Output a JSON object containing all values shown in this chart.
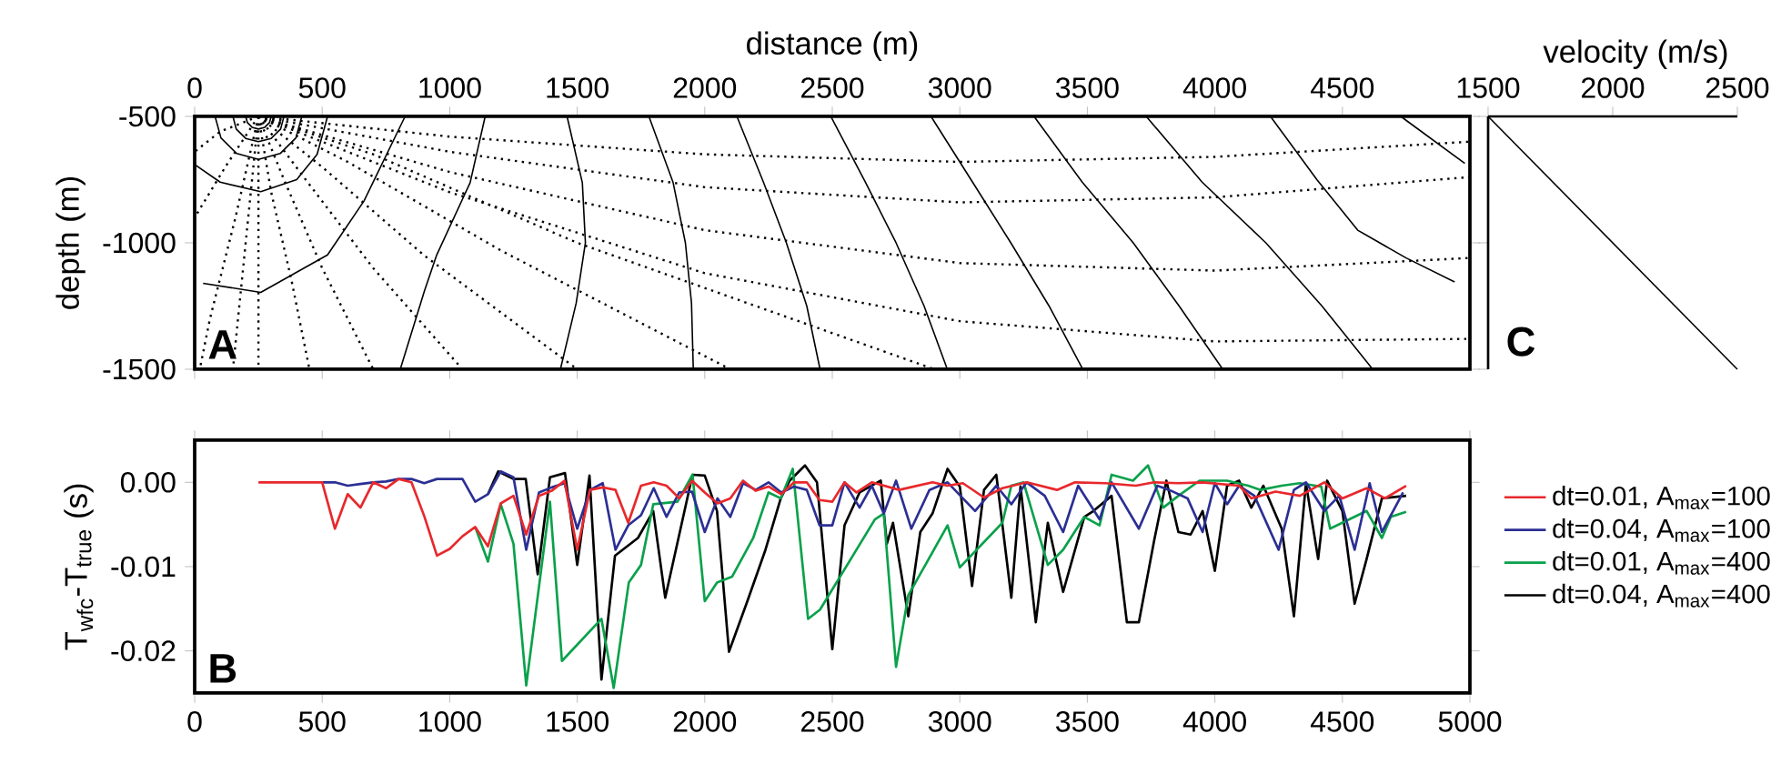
{
  "chart_data": [
    {
      "type": "line",
      "xlabel": "distance (m)",
      "xlim": [
        0,
        5000
      ],
      "xticks": [
        0,
        500,
        1000,
        1500,
        2000,
        2500,
        3000,
        3500,
        4000,
        4500
      ],
      "ylabel": "depth (m)",
      "ylim": [
        -1500,
        -500
      ],
      "yticks": [
        -1500,
        -1000,
        -500
      ],
      "annotations": [
        "A"
      ],
      "series": [
        {
          "x": [
            200,
            207,
            225,
            250,
            275,
            293,
            300
          ],
          "values": [
            -500,
            -525,
            -543,
            -550,
            -543,
            -525,
            -500
          ],
          "color": "#000000",
          "line_style": "solid"
        },
        {
          "x": [
            150,
            163,
            200,
            250,
            300,
            337,
            350
          ],
          "values": [
            -500,
            -550,
            -587,
            -600,
            -587,
            -550,
            -500
          ],
          "color": "#000000",
          "line_style": "solid"
        },
        {
          "x": [
            80,
            103,
            165,
            250,
            335,
            397,
            420
          ],
          "values": [
            -500,
            -585,
            -647,
            -670,
            -647,
            -585,
            -500
          ],
          "color": "#000000",
          "line_style": "solid"
        },
        {
          "x": [
            0,
            100,
            259,
            400,
            480,
            521
          ],
          "values": [
            -690,
            -760,
            -798,
            -750,
            -650,
            -500
          ],
          "color": "#000000",
          "line_style": "solid"
        },
        {
          "x": [
            33,
            259,
            521,
            664,
            825
          ],
          "values": [
            -1160,
            -1196,
            -1048,
            -834,
            -500
          ],
          "color": "#000000",
          "line_style": "solid"
        },
        {
          "x": [
            1139,
            1080,
            949,
            901,
            806
          ],
          "values": [
            -500,
            -762,
            -1048,
            -1190,
            -1500
          ],
          "color": "#000000",
          "line_style": "solid"
        },
        {
          "x": [
            1460,
            1520,
            1532,
            1496,
            1434
          ],
          "values": [
            -500,
            -762,
            -1000,
            -1238,
            -1500
          ],
          "color": "#000000",
          "line_style": "solid"
        },
        {
          "x": [
            1781,
            1876,
            1924,
            1948,
            1955
          ],
          "values": [
            -500,
            -762,
            -1000,
            -1238,
            -1500
          ],
          "color": "#000000",
          "line_style": "solid"
        },
        {
          "x": [
            2126,
            2230,
            2320,
            2400,
            2452
          ],
          "values": [
            -500,
            -760,
            -1000,
            -1250,
            -1500
          ],
          "color": "#000000",
          "line_style": "solid"
        },
        {
          "x": [
            2494,
            2630,
            2750,
            2860,
            2951
          ],
          "values": [
            -500,
            -760,
            -1000,
            -1250,
            -1500
          ],
          "color": "#000000",
          "line_style": "solid"
        },
        {
          "x": [
            2887,
            3050,
            3200,
            3350,
            3482
          ],
          "values": [
            -500,
            -760,
            -1000,
            -1250,
            -1500
          ],
          "color": "#000000",
          "line_style": "solid"
        },
        {
          "x": [
            3291,
            3480,
            3680,
            3860,
            4031
          ],
          "values": [
            -500,
            -760,
            -1000,
            -1250,
            -1500
          ],
          "color": "#000000",
          "line_style": "solid"
        },
        {
          "x": [
            3731,
            3950,
            4200,
            4420,
            4619
          ],
          "values": [
            -500,
            -760,
            -1000,
            -1250,
            -1500
          ],
          "color": "#000000",
          "line_style": "solid"
        },
        {
          "x": [
            4218,
            4400,
            4560,
            4750,
            4940
          ],
          "values": [
            -500,
            -750,
            -950,
            -1060,
            -1155
          ],
          "color": "#000000",
          "line_style": "solid"
        },
        {
          "x": [
            4729,
            4980
          ],
          "values": [
            -500,
            -686
          ],
          "color": "#000000",
          "line_style": "solid"
        },
        {
          "x": [
            250,
            250
          ],
          "values": [
            -500,
            -1500
          ],
          "color": "#000000",
          "line_style": "dotted"
        },
        {
          "x": [
            250,
            300,
            380,
            450
          ],
          "values": [
            -500,
            -800,
            -1150,
            -1500
          ],
          "color": "#000000",
          "line_style": "dotted"
        },
        {
          "x": [
            250,
            350,
            500,
            700
          ],
          "values": [
            -500,
            -750,
            -1100,
            -1500
          ],
          "color": "#000000",
          "line_style": "dotted"
        },
        {
          "x": [
            250,
            420,
            700,
            1050
          ],
          "values": [
            -500,
            -730,
            -1100,
            -1500
          ],
          "color": "#000000",
          "line_style": "dotted"
        },
        {
          "x": [
            250,
            500,
            900,
            1500
          ],
          "values": [
            -500,
            -700,
            -1050,
            -1500
          ],
          "color": "#000000",
          "line_style": "dotted"
        },
        {
          "x": [
            250,
            600,
            1200,
            2100
          ],
          "values": [
            -500,
            -680,
            -1030,
            -1500
          ],
          "color": "#000000",
          "line_style": "dotted"
        },
        {
          "x": [
            250,
            700,
            1500,
            2900
          ],
          "values": [
            -500,
            -650,
            -1000,
            -1500
          ],
          "color": "#000000",
          "line_style": "dotted"
        },
        {
          "x": [
            250,
            1000,
            2000,
            3000,
            4000,
            5000
          ],
          "values": [
            -500,
            -800,
            -1120,
            -1310,
            -1390,
            -1380
          ],
          "color": "#000000",
          "line_style": "dotted"
        },
        {
          "x": [
            250,
            1000,
            2000,
            3000,
            4000,
            5000
          ],
          "values": [
            -500,
            -720,
            -950,
            -1080,
            -1110,
            -1060
          ],
          "color": "#000000",
          "line_style": "dotted"
        },
        {
          "x": [
            250,
            1000,
            2000,
            3000,
            4000,
            5000
          ],
          "values": [
            -500,
            -640,
            -780,
            -840,
            -820,
            -740
          ],
          "color": "#000000",
          "line_style": "dotted"
        },
        {
          "x": [
            250,
            1000,
            2000,
            3000,
            4000,
            5000
          ],
          "values": [
            -500,
            -580,
            -650,
            -680,
            -660,
            -600
          ],
          "color": "#000000",
          "line_style": "dotted"
        },
        {
          "x": [
            250,
            100,
            0
          ],
          "values": [
            -500,
            -560,
            -640
          ],
          "color": "#000000",
          "line_style": "dotted"
        },
        {
          "x": [
            250,
            120,
            0
          ],
          "values": [
            -500,
            -700,
            -900
          ],
          "color": "#000000",
          "line_style": "dotted"
        },
        {
          "x": [
            250,
            160,
            60,
            20
          ],
          "values": [
            -500,
            -900,
            -1300,
            -1500
          ],
          "color": "#000000",
          "line_style": "dotted"
        },
        {
          "x": [
            250,
            200,
            150
          ],
          "values": [
            -500,
            -1000,
            -1500
          ],
          "color": "#000000",
          "line_style": "dotted"
        }
      ]
    },
    {
      "type": "line",
      "xlabel": "velocity (m/s)",
      "xlim": [
        1500,
        2500
      ],
      "xticks": [
        1500,
        2000,
        2500
      ],
      "ylim": [
        -1500,
        -500
      ],
      "yticks": [
        {
          "value": -1500,
          "label": null
        },
        {
          "value": -1000,
          "label": null
        },
        {
          "value": -500,
          "label": null
        }
      ],
      "tick_labels": "x",
      "annotations": [
        "C"
      ],
      "series": [
        {
          "x": [
            1500,
            2500
          ],
          "values": [
            -500,
            -1500
          ],
          "color": "#000000",
          "line_style": "solid"
        }
      ]
    },
    {
      "type": "line",
      "xlim": [
        0,
        5000
      ],
      "xticks": [
        0,
        500,
        1000,
        1500,
        2000,
        2500,
        3000,
        3500,
        4000,
        4500,
        5000
      ],
      "ylabel": "T$_{wfc}$-T$_{true}$ (s)",
      "ylim": [
        -0.025,
        0.005
      ],
      "yticks": [
        -0.02,
        -0.01,
        {
          "value": 0,
          "label": "0.00"
        }
      ],
      "legend": "right",
      "annotations": [
        "B"
      ],
      "series": [
        {
          "name": "dt=0.01, A$_{max}$=100",
          "color": "#e8282c",
          "x": [
            250,
            300,
            350,
            400,
            450,
            500,
            550,
            600,
            650,
            700,
            750,
            800,
            850,
            900,
            950,
            1000,
            1050,
            1100,
            1150,
            1200,
            1250,
            1300,
            1350,
            1400,
            1450,
            1500,
            1550,
            1600,
            1650,
            1700,
            1750,
            1800,
            1850,
            1900,
            1950,
            2000,
            2050,
            2100,
            2150,
            2200,
            2250,
            2300,
            2350,
            2400,
            2450,
            2500,
            2548,
            2595,
            2655,
            2762,
            2893,
            2952,
            3012,
            3095,
            3167,
            3262,
            3381,
            3452,
            3571,
            3690,
            3762,
            3857,
            3952,
            4095,
            4143,
            4238,
            4333,
            4429,
            4500,
            4595,
            4667,
            4750
          ],
          "values": [
            0,
            0,
            0,
            0,
            0,
            0,
            -0.0055,
            -0.0014,
            -0.003,
            0,
            -0.0007,
            0.0004,
            0,
            -0.004,
            -0.0087,
            -0.0079,
            -0.0064,
            -0.0053,
            -0.0076,
            -0.0025,
            -0.0016,
            -0.0062,
            -0.0016,
            -0.001,
            0.0002,
            -0.008,
            -0.0009,
            -0.0006,
            -0.0009,
            -0.0048,
            -0.0004,
            0,
            -0.0004,
            -0.0019,
            0.0002,
            -0.0012,
            -0.0025,
            -0.0019,
            0.0002,
            -0.001,
            -0.0005,
            -0.0014,
            0,
            0,
            -0.0021,
            -0.0023,
            0,
            -0.0012,
            0,
            -0.0009,
            0,
            -0.0004,
            -0.0001,
            -0.0018,
            -0.0007,
            0,
            -0.0009,
            0,
            -0.0001,
            -0.0004,
            0,
            -0.0001,
            0,
            -0.0004,
            -0.0019,
            -0.0011,
            -0.0016,
            0,
            -0.0019,
            -0.0007,
            -0.0019,
            -0.0004
          ]
        },
        {
          "name": "dt=0.04, A$_{max}$=100",
          "color": "#2b2f93",
          "x": [
            500,
            550,
            600,
            650,
            700,
            750,
            800,
            850,
            900,
            950,
            1000,
            1050,
            1100,
            1150,
            1200,
            1250,
            1300,
            1350,
            1400,
            1450,
            1500,
            1550,
            1600,
            1650,
            1700,
            1750,
            1800,
            1850,
            1900,
            1950,
            2000,
            2050,
            2100,
            2150,
            2200,
            2250,
            2300,
            2350,
            2400,
            2450,
            2500,
            2548,
            2607,
            2655,
            2702,
            2750,
            2810,
            2881,
            2952,
            3060,
            3143,
            3202,
            3262,
            3333,
            3405,
            3464,
            3548,
            3595,
            3702,
            3774,
            3821,
            3893,
            3952,
            4000,
            4048,
            4095,
            4155,
            4250,
            4310,
            4357,
            4429,
            4488,
            4548,
            4607,
            4655,
            4738
          ],
          "values": [
            0,
            0,
            -0.0004,
            -0.0002,
            0,
            0.0001,
            0.0004,
            0.0004,
            -0.0001,
            0.0004,
            0.0004,
            0.0004,
            -0.0023,
            -0.0014,
            0.0013,
            0.0006,
            -0.008,
            -0.0012,
            -0.0006,
            -0.0001,
            -0.0055,
            -0.0009,
            -0.0001,
            -0.008,
            -0.0051,
            -0.0039,
            -0.0007,
            -0.0041,
            -0.0012,
            -0.0011,
            -0.0059,
            -0.0019,
            -0.0041,
            -0.0001,
            -0.0009,
            0,
            -0.0012,
            -0.0005,
            -0.0009,
            -0.0051,
            -0.0051,
            0,
            -0.003,
            -0.0004,
            -0.0037,
            0.0002,
            -0.0055,
            -0.0009,
            0,
            -0.0034,
            -0.0004,
            -0.0026,
            0,
            -0.0016,
            -0.0059,
            -0.0004,
            -0.0044,
            0,
            -0.0055,
            -0.0004,
            -0.0009,
            -0.0019,
            -0.0059,
            -0.0001,
            -0.0026,
            -0.0004,
            -0.0016,
            -0.008,
            -0.0009,
            0,
            -0.0034,
            -0.0016,
            -0.008,
            -0.0001,
            -0.0059,
            -0.0012
          ]
        },
        {
          "name": "dt=0.01, A$_{max}$=400",
          "color": "#0aa14b",
          "x": [
            1100,
            1150,
            1200,
            1250,
            1300,
            1393,
            1440,
            1595,
            1643,
            1702,
            1750,
            1798,
            1893,
            1952,
            2000,
            2048,
            2107,
            2190,
            2250,
            2298,
            2345,
            2405,
            2452,
            2667,
            2702,
            2750,
            2798,
            2952,
            3000,
            3167,
            3202,
            3250,
            3345,
            3405,
            3488,
            3548,
            3595,
            3679,
            3738,
            3798,
            3857,
            3940,
            4048,
            4131,
            4179,
            4262,
            4333,
            4417,
            4452,
            4595,
            4655,
            4690,
            4750
          ],
          "values": [
            -0.0053,
            -0.0094,
            -0.0026,
            -0.0073,
            -0.0241,
            -0.0023,
            -0.0212,
            -0.0162,
            -0.0244,
            -0.0119,
            -0.0098,
            -0.0026,
            -0.0023,
            0.0009,
            -0.0141,
            -0.0119,
            -0.0112,
            -0.0066,
            -0.0012,
            -0.0019,
            0.0016,
            -0.0162,
            -0.0151,
            -0.0044,
            -0.0037,
            -0.0219,
            -0.0134,
            -0.0051,
            -0.0101,
            -0.0048,
            -0.0004,
            0,
            -0.0098,
            -0.008,
            -0.0041,
            -0.0051,
            0.0009,
            0.0002,
            0.002,
            -0.003,
            -0.0016,
            0.0002,
            0.0002,
            -0.0004,
            -0.0009,
            -0.0004,
            -0.0001,
            -0.0005,
            -0.0055,
            -0.0034,
            -0.0066,
            -0.0041,
            -0.0035
          ]
        },
        {
          "name": "dt=0.04, A$_{max}$=400",
          "color": "#000000",
          "x": [
            1150,
            1190,
            1250,
            1298,
            1345,
            1393,
            1452,
            1500,
            1548,
            1595,
            1648,
            1738,
            1798,
            1845,
            1952,
            2000,
            2048,
            2095,
            2167,
            2238,
            2298,
            2333,
            2393,
            2440,
            2500,
            2548,
            2607,
            2690,
            2714,
            2738,
            2798,
            2845,
            2893,
            2952,
            3000,
            3048,
            3095,
            3143,
            3202,
            3238,
            3298,
            3345,
            3405,
            3488,
            3524,
            3595,
            3655,
            3702,
            3762,
            3810,
            3857,
            3905,
            3952,
            4000,
            4048,
            4095,
            4143,
            4190,
            4262,
            4310,
            4357,
            4405,
            4440,
            4500,
            4548,
            4595,
            4655,
            4750
          ],
          "values": [
            -0.0014,
            0.0013,
            0.0004,
            0.0004,
            -0.0109,
            0.0006,
            0.0011,
            -0.0098,
            0.0008,
            -0.0234,
            -0.0087,
            -0.0066,
            -0.0034,
            -0.0137,
            0.0009,
            0.0008,
            -0.0034,
            -0.0201,
            -0.0141,
            -0.008,
            -0.0019,
            0.0002,
            0.002,
            0,
            -0.0198,
            -0.0051,
            -0.0012,
            0.0002,
            -0.0073,
            -0.0048,
            -0.0159,
            -0.0059,
            -0.0037,
            0.0016,
            -0.0005,
            -0.0123,
            -0.0009,
            0.0009,
            -0.0137,
            -0.0005,
            -0.0166,
            -0.0048,
            -0.013,
            -0.0041,
            -0.0034,
            -0.0016,
            -0.0166,
            -0.0166,
            -0.0069,
            0.0002,
            -0.0059,
            -0.0062,
            -0.0034,
            -0.0105,
            -0.0004,
            0.0002,
            -0.003,
            -0.0004,
            -0.0055,
            -0.0159,
            -0.0001,
            -0.0091,
            0.0002,
            -0.0034,
            -0.0144,
            -0.0091,
            -0.0019,
            -0.0016
          ]
        }
      ]
    }
  ]
}
